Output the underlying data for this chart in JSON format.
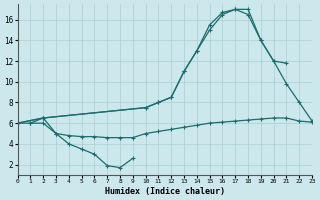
{
  "xlabel": "Humidex (Indice chaleur)",
  "bg_color": "#cce8ec",
  "grid_color": "#aacdd3",
  "line_color": "#1a6e6e",
  "xlim": [
    0,
    23
  ],
  "ylim": [
    1,
    17.5
  ],
  "xticks": [
    0,
    1,
    2,
    3,
    4,
    5,
    6,
    7,
    8,
    9,
    10,
    11,
    12,
    13,
    14,
    15,
    16,
    17,
    18,
    19,
    20,
    21,
    22,
    23
  ],
  "yticks": [
    2,
    4,
    6,
    8,
    10,
    12,
    14,
    16
  ],
  "s1x": [
    1,
    2,
    3,
    4,
    5,
    6,
    7,
    8,
    9
  ],
  "s1y": [
    6.0,
    6.5,
    5.0,
    4.0,
    3.5,
    3.0,
    1.9,
    1.7,
    2.6
  ],
  "s2x": [
    0,
    1,
    2,
    3,
    4,
    5,
    6,
    7,
    8,
    9,
    10,
    11,
    12,
    13,
    14,
    15,
    16,
    17,
    18,
    19,
    20,
    21,
    22,
    23
  ],
  "s2y": [
    6.0,
    6.0,
    6.0,
    5.0,
    4.8,
    4.7,
    4.7,
    4.6,
    4.6,
    4.6,
    5.0,
    5.2,
    5.4,
    5.6,
    5.8,
    6.0,
    6.1,
    6.2,
    6.3,
    6.4,
    6.5,
    6.5,
    6.2,
    6.1
  ],
  "s3x": [
    0,
    2,
    10,
    11,
    12,
    13,
    14,
    15,
    16,
    17,
    18,
    19,
    20,
    21
  ],
  "s3y": [
    6.0,
    6.5,
    7.5,
    8.0,
    8.5,
    11.0,
    13.0,
    15.0,
    16.5,
    17.0,
    17.0,
    14.0,
    12.0,
    11.8
  ],
  "s4x": [
    0,
    2,
    10,
    11,
    12,
    13,
    14,
    15,
    16,
    17,
    18,
    19,
    20,
    21,
    22,
    23
  ],
  "s4y": [
    6.0,
    6.5,
    7.5,
    8.0,
    8.5,
    11.0,
    13.0,
    15.5,
    16.7,
    17.0,
    16.5,
    14.0,
    12.0,
    9.8,
    8.0,
    6.2
  ]
}
